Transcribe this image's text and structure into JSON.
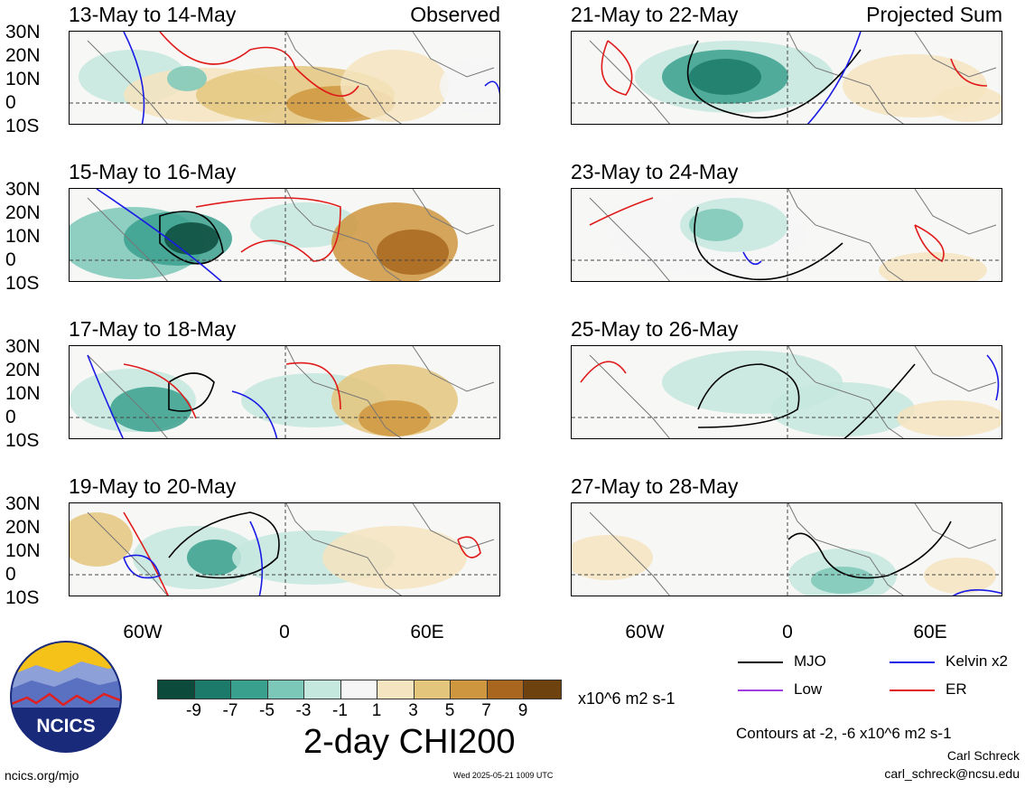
{
  "panels": [
    {
      "title": "13-May to 14-May",
      "tag": "Observed"
    },
    {
      "title": "21-May to 22-May",
      "tag": "Projected Sum"
    },
    {
      "title": "15-May to 16-May",
      "tag": ""
    },
    {
      "title": "23-May to 24-May",
      "tag": ""
    },
    {
      "title": "17-May to 18-May",
      "tag": ""
    },
    {
      "title": "25-May to 26-May",
      "tag": ""
    },
    {
      "title": "19-May to 20-May",
      "tag": ""
    },
    {
      "title": "27-May to 28-May",
      "tag": ""
    }
  ],
  "lat_labels": [
    "30N",
    "20N",
    "10N",
    "0",
    "10S"
  ],
  "lon_labels": [
    "60W",
    "0",
    "60E"
  ],
  "legend": {
    "mjo": {
      "label": "MJO",
      "color": "#000000"
    },
    "kelvin": {
      "label": "Kelvin x2",
      "color": "#1a1ae6"
    },
    "low": {
      "label": "Low",
      "color": "#a040e0"
    },
    "er": {
      "label": "ER",
      "color": "#e01a1a"
    }
  },
  "colorbar": {
    "colors": [
      "#0c4b3c",
      "#1c7a6a",
      "#3aa08e",
      "#7cc8b8",
      "#c4e8de",
      "#f6f6f6",
      "#f4e4c0",
      "#e4c57c",
      "#cf9640",
      "#a8661e",
      "#6e420e"
    ],
    "labels": [
      "-9",
      "-7",
      "-5",
      "-3",
      "-1",
      "1",
      "3",
      "5",
      "7",
      "9"
    ],
    "units": "x10^6 m2 s-1"
  },
  "main_title": "2-day CHI200",
  "contours_note": "Contours at -2, -6 x10^6 m2 s-1",
  "author": "Carl Schreck",
  "email": "carl_schreck@ncsu.edu",
  "site": "ncics.org/mjo",
  "timestamp": "Wed 2025-05-21 1009 UTC",
  "logo_text": "NCICS"
}
